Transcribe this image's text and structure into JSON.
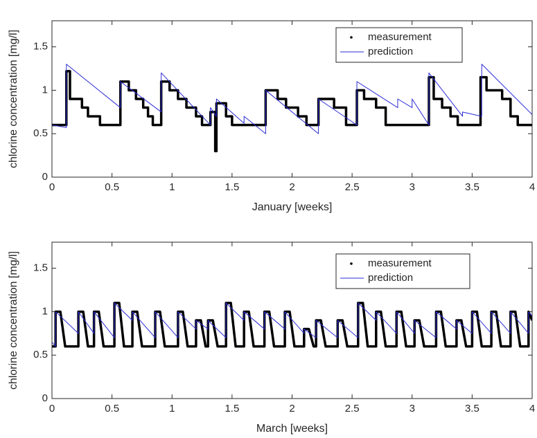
{
  "chart_data": [
    {
      "type": "line",
      "ylabel": "chlorine concentration [mg/l]",
      "xlabel": "January [weeks]",
      "xlim": [
        0,
        4
      ],
      "ylim": [
        0,
        1.8
      ],
      "xticks": [
        0,
        0.5,
        1,
        1.5,
        2,
        2.5,
        3,
        3.5,
        4
      ],
      "yticks": [
        0,
        0.5,
        1,
        1.5
      ],
      "legend": "upper right",
      "grid": false,
      "series": [
        {
          "name": "measurement",
          "color": "#000000",
          "marker": "dot",
          "x": [
            0,
            0.12,
            0.12,
            0.15,
            0.15,
            0.25,
            0.25,
            0.3,
            0.3,
            0.4,
            0.4,
            0.57,
            0.57,
            0.64,
            0.64,
            0.7,
            0.7,
            0.76,
            0.76,
            0.8,
            0.8,
            0.84,
            0.84,
            0.91,
            0.91,
            0.98,
            0.98,
            1.05,
            1.05,
            1.12,
            1.12,
            1.2,
            1.2,
            1.25,
            1.25,
            1.32,
            1.32,
            1.36,
            1.36,
            1.37,
            1.37,
            1.45,
            1.45,
            1.5,
            1.5,
            1.78,
            1.78,
            1.88,
            1.88,
            1.95,
            1.95,
            2.05,
            2.05,
            2.12,
            2.12,
            2.22,
            2.22,
            2.35,
            2.35,
            2.45,
            2.45,
            2.54,
            2.54,
            2.6,
            2.6,
            2.7,
            2.7,
            2.78,
            2.78,
            3.14,
            3.14,
            3.18,
            3.18,
            3.25,
            3.25,
            3.32,
            3.32,
            3.38,
            3.38,
            3.57,
            3.57,
            3.62,
            3.62,
            3.75,
            3.75,
            3.82,
            3.82,
            3.88,
            3.88,
            4
          ],
          "values": [
            0.6,
            0.6,
            1.22,
            1.22,
            0.9,
            0.9,
            0.8,
            0.8,
            0.7,
            0.7,
            0.6,
            0.6,
            1.1,
            1.1,
            1.0,
            1.0,
            0.9,
            0.9,
            0.8,
            0.8,
            0.7,
            0.7,
            0.6,
            0.6,
            1.1,
            1.1,
            1.0,
            1.0,
            0.9,
            0.9,
            0.8,
            0.8,
            0.7,
            0.7,
            0.6,
            0.6,
            0.75,
            0.75,
            0.3,
            0.3,
            0.85,
            0.85,
            0.7,
            0.7,
            0.6,
            0.6,
            1.0,
            1.0,
            0.9,
            0.9,
            0.8,
            0.8,
            0.7,
            0.7,
            0.6,
            0.6,
            0.9,
            0.9,
            0.8,
            0.8,
            0.6,
            0.6,
            1.0,
            1.0,
            0.9,
            0.9,
            0.8,
            0.8,
            0.6,
            0.6,
            1.15,
            1.15,
            0.9,
            0.9,
            0.8,
            0.8,
            0.7,
            0.7,
            0.6,
            0.6,
            1.15,
            1.15,
            1.0,
            1.0,
            0.9,
            0.9,
            0.7,
            0.7,
            0.6,
            0.6
          ]
        },
        {
          "name": "prediction",
          "color": "#2b2bd6",
          "x": [
            0,
            0.12,
            0.12,
            0.57,
            0.57,
            0.91,
            0.91,
            1.32,
            1.32,
            1.37,
            1.37,
            1.6,
            1.6,
            1.78,
            1.78,
            2.22,
            2.22,
            2.54,
            2.54,
            2.88,
            2.88,
            3.0,
            3.0,
            3.14,
            3.14,
            3.42,
            3.42,
            3.58,
            3.58,
            4
          ],
          "values": [
            0.6,
            0.57,
            1.3,
            0.8,
            1.1,
            0.75,
            1.2,
            0.6,
            0.8,
            0.7,
            0.9,
            0.62,
            0.7,
            0.5,
            1.0,
            0.5,
            0.9,
            0.6,
            1.1,
            0.8,
            0.9,
            0.8,
            0.9,
            0.6,
            1.2,
            0.7,
            0.75,
            0.7,
            1.3,
            0.72
          ]
        }
      ]
    },
    {
      "type": "line",
      "ylabel": "chlorine concentration [mg/l]",
      "xlabel": "March [weeks]",
      "xlim": [
        0,
        4
      ],
      "ylim": [
        0,
        1.8
      ],
      "xticks": [
        0,
        0.5,
        1,
        1.5,
        2,
        2.5,
        3,
        3.5,
        4
      ],
      "yticks": [
        0,
        0.5,
        1,
        1.5
      ],
      "legend": "upper right",
      "grid": false,
      "series": [
        {
          "name": "measurement",
          "color": "#000000",
          "marker": "dot",
          "x": [
            0,
            0.03,
            0.03,
            0.07,
            0.11,
            0.22,
            0.22,
            0.26,
            0.3,
            0.35,
            0.35,
            0.39,
            0.43,
            0.52,
            0.52,
            0.56,
            0.6,
            0.67,
            0.67,
            0.71,
            0.75,
            0.86,
            0.86,
            0.9,
            0.94,
            1.05,
            1.05,
            1.09,
            1.13,
            1.2,
            1.2,
            1.24,
            1.28,
            1.3,
            1.3,
            1.34,
            1.38,
            1.45,
            1.45,
            1.49,
            1.53,
            1.6,
            1.6,
            1.64,
            1.68,
            1.77,
            1.77,
            1.81,
            1.85,
            1.94,
            1.94,
            1.98,
            2.02,
            2.1,
            2.1,
            2.14,
            2.18,
            2.2,
            2.2,
            2.24,
            2.28,
            2.38,
            2.38,
            2.42,
            2.46,
            2.55,
            2.55,
            2.59,
            2.63,
            2.7,
            2.7,
            2.74,
            2.78,
            2.87,
            2.87,
            2.91,
            2.95,
            3.02,
            3.02,
            3.06,
            3.1,
            3.2,
            3.2,
            3.24,
            3.28,
            3.37,
            3.37,
            3.41,
            3.45,
            3.5,
            3.5,
            3.54,
            3.58,
            3.66,
            3.66,
            3.7,
            3.74,
            3.82,
            3.82,
            3.86,
            3.9,
            3.97,
            3.97,
            4
          ],
          "values": [
            0.6,
            0.6,
            1.0,
            1.0,
            0.6,
            0.6,
            1.0,
            1.0,
            0.6,
            0.6,
            1.0,
            1.0,
            0.6,
            0.6,
            1.1,
            1.1,
            0.6,
            0.6,
            1.0,
            1.0,
            0.6,
            0.6,
            1.0,
            1.0,
            0.6,
            0.6,
            1.0,
            1.0,
            0.6,
            0.6,
            0.9,
            0.9,
            0.6,
            0.6,
            0.9,
            0.9,
            0.6,
            0.6,
            1.1,
            1.1,
            0.6,
            0.6,
            1.0,
            1.0,
            0.6,
            0.6,
            1.0,
            1.0,
            0.6,
            0.6,
            1.0,
            1.0,
            0.6,
            0.6,
            0.8,
            0.8,
            0.6,
            0.6,
            0.9,
            0.9,
            0.6,
            0.6,
            0.9,
            0.9,
            0.6,
            0.6,
            1.1,
            1.1,
            0.6,
            0.6,
            1.0,
            1.0,
            0.6,
            0.6,
            1.0,
            1.0,
            0.6,
            0.6,
            0.9,
            0.9,
            0.6,
            0.6,
            1.0,
            1.0,
            0.6,
            0.6,
            0.9,
            0.9,
            0.6,
            0.6,
            1.0,
            1.0,
            0.6,
            0.6,
            1.0,
            1.0,
            0.6,
            0.6,
            1.0,
            1.0,
            0.6,
            0.6,
            1.0,
            0.9
          ]
        },
        {
          "name": "prediction",
          "color": "#2b2bd6",
          "x": [
            0,
            0.03,
            0.03,
            0.22,
            0.22,
            0.35,
            0.35,
            0.52,
            0.52,
            0.67,
            0.67,
            0.86,
            0.86,
            1.05,
            1.05,
            1.2,
            1.2,
            1.3,
            1.3,
            1.45,
            1.45,
            1.6,
            1.6,
            1.77,
            1.77,
            1.94,
            1.94,
            2.1,
            2.1,
            2.2,
            2.2,
            2.38,
            2.38,
            2.55,
            2.55,
            2.7,
            2.7,
            2.87,
            2.87,
            3.02,
            3.02,
            3.2,
            3.2,
            3.37,
            3.37,
            3.5,
            3.5,
            3.66,
            3.66,
            3.82,
            3.82,
            3.97,
            3.97,
            4
          ],
          "values": [
            0.65,
            0.6,
            1.0,
            0.75,
            1.0,
            0.75,
            1.0,
            0.7,
            1.1,
            0.9,
            1.0,
            0.7,
            1.0,
            0.7,
            1.0,
            0.8,
            0.9,
            0.8,
            0.9,
            0.7,
            1.1,
            0.9,
            1.0,
            0.8,
            1.0,
            0.8,
            1.0,
            0.75,
            0.8,
            0.7,
            0.9,
            0.7,
            0.9,
            0.7,
            1.1,
            0.9,
            1.0,
            0.75,
            1.0,
            0.75,
            0.9,
            0.7,
            1.0,
            0.8,
            0.9,
            0.75,
            1.0,
            0.75,
            1.0,
            0.75,
            1.0,
            0.75,
            1.0,
            0.95
          ]
        }
      ]
    }
  ]
}
